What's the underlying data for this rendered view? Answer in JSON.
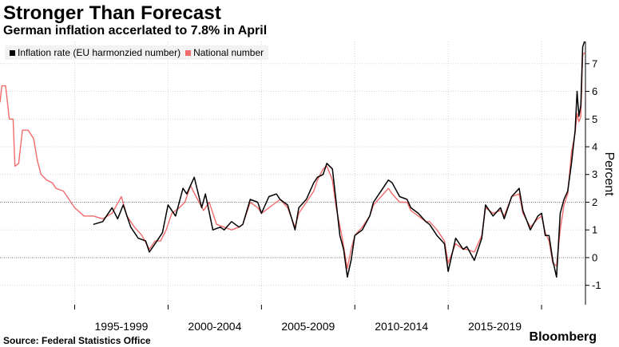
{
  "header": {
    "title": "Stronger Than Forecast",
    "subtitle": "German inflation accerlated to 7.8% in April"
  },
  "footer": {
    "source": "Source: Federal Statistics Office",
    "brand": "Bloomberg"
  },
  "chart_data": {
    "type": "line",
    "ylabel": "Percent",
    "ylim": [
      -1.7,
      7.8
    ],
    "xlim": [
      1991.0,
      2022.35
    ],
    "yticks": [
      "-1",
      "0",
      "1",
      "2",
      "3",
      "4",
      "5",
      "6",
      "7"
    ],
    "ytick_values": [
      -1,
      0,
      1,
      2,
      3,
      4,
      5,
      6,
      7
    ],
    "xtick_labels": [
      "1995-1999",
      "2000-2004",
      "2005-2009",
      "2010-2014",
      "2015-2019"
    ],
    "xtick_centers": [
      1997.5,
      2002.5,
      2007.5,
      2012.5,
      2017.5
    ],
    "xtick_separators": [
      1995,
      2000,
      2005,
      2010,
      2015,
      2020
    ],
    "reference_lines": [
      0,
      2
    ],
    "grid": true,
    "legend": "top-left",
    "colors": {
      "hicp": "#000000",
      "national": "#f26b6b"
    },
    "series": [
      {
        "name": "Inflation rate (EU harmonzied number)",
        "key": "hicp",
        "points": [
          [
            1996.0,
            1.2
          ],
          [
            1996.5,
            1.3
          ],
          [
            1997.0,
            1.8
          ],
          [
            1997.3,
            1.4
          ],
          [
            1997.6,
            1.9
          ],
          [
            1998.0,
            1.1
          ],
          [
            1998.4,
            0.7
          ],
          [
            1998.8,
            0.6
          ],
          [
            1999.0,
            0.2
          ],
          [
            1999.3,
            0.5
          ],
          [
            1999.7,
            0.9
          ],
          [
            2000.0,
            1.9
          ],
          [
            2000.4,
            1.5
          ],
          [
            2000.8,
            2.5
          ],
          [
            2001.0,
            2.3
          ],
          [
            2001.4,
            2.9
          ],
          [
            2001.8,
            1.8
          ],
          [
            2002.0,
            2.3
          ],
          [
            2002.4,
            1.0
          ],
          [
            2002.8,
            1.1
          ],
          [
            2003.0,
            1.0
          ],
          [
            2003.4,
            1.3
          ],
          [
            2003.8,
            1.1
          ],
          [
            2004.0,
            1.2
          ],
          [
            2004.4,
            2.1
          ],
          [
            2004.8,
            2.0
          ],
          [
            2005.0,
            1.6
          ],
          [
            2005.4,
            2.2
          ],
          [
            2005.8,
            2.3
          ],
          [
            2006.0,
            2.1
          ],
          [
            2006.4,
            1.9
          ],
          [
            2006.8,
            1.0
          ],
          [
            2007.0,
            1.8
          ],
          [
            2007.4,
            2.1
          ],
          [
            2007.8,
            2.7
          ],
          [
            2008.0,
            2.9
          ],
          [
            2008.3,
            3.0
          ],
          [
            2008.5,
            3.4
          ],
          [
            2008.8,
            3.2
          ],
          [
            2009.0,
            2.0
          ],
          [
            2009.2,
            0.8
          ],
          [
            2009.4,
            0.3
          ],
          [
            2009.6,
            -0.7
          ],
          [
            2009.8,
            -0.1
          ],
          [
            2010.0,
            0.8
          ],
          [
            2010.4,
            1.0
          ],
          [
            2010.8,
            1.5
          ],
          [
            2011.0,
            2.0
          ],
          [
            2011.4,
            2.4
          ],
          [
            2011.8,
            2.8
          ],
          [
            2012.0,
            2.7
          ],
          [
            2012.4,
            2.2
          ],
          [
            2012.8,
            2.1
          ],
          [
            2013.0,
            1.8
          ],
          [
            2013.4,
            1.6
          ],
          [
            2013.8,
            1.3
          ],
          [
            2014.0,
            1.2
          ],
          [
            2014.4,
            0.8
          ],
          [
            2014.8,
            0.5
          ],
          [
            2015.0,
            -0.5
          ],
          [
            2015.4,
            0.7
          ],
          [
            2015.8,
            0.3
          ],
          [
            2016.0,
            0.4
          ],
          [
            2016.4,
            -0.1
          ],
          [
            2016.8,
            0.7
          ],
          [
            2017.0,
            1.9
          ],
          [
            2017.4,
            1.5
          ],
          [
            2017.8,
            1.8
          ],
          [
            2018.0,
            1.4
          ],
          [
            2018.4,
            2.2
          ],
          [
            2018.8,
            2.5
          ],
          [
            2019.0,
            1.7
          ],
          [
            2019.4,
            1.0
          ],
          [
            2019.8,
            1.5
          ],
          [
            2020.0,
            1.6
          ],
          [
            2020.2,
            0.8
          ],
          [
            2020.4,
            0.8
          ],
          [
            2020.6,
            -0.1
          ],
          [
            2020.8,
            -0.7
          ],
          [
            2021.0,
            1.6
          ],
          [
            2021.2,
            2.1
          ],
          [
            2021.4,
            2.4
          ],
          [
            2021.6,
            3.4
          ],
          [
            2021.8,
            4.6
          ],
          [
            2021.9,
            6.0
          ],
          [
            2022.0,
            5.1
          ],
          [
            2022.1,
            5.5
          ],
          [
            2022.2,
            7.6
          ],
          [
            2022.3,
            7.8
          ]
        ]
      },
      {
        "name": "National number",
        "key": "national",
        "points": [
          [
            1991.0,
            5.6
          ],
          [
            1991.1,
            6.2
          ],
          [
            1991.3,
            6.2
          ],
          [
            1991.5,
            5.0
          ],
          [
            1991.7,
            5.0
          ],
          [
            1991.8,
            3.3
          ],
          [
            1992.0,
            3.4
          ],
          [
            1992.2,
            4.6
          ],
          [
            1992.5,
            4.6
          ],
          [
            1992.8,
            4.3
          ],
          [
            1993.0,
            3.5
          ],
          [
            1993.2,
            3.0
          ],
          [
            1993.5,
            2.8
          ],
          [
            1993.8,
            2.7
          ],
          [
            1994.0,
            2.5
          ],
          [
            1994.4,
            2.4
          ],
          [
            1994.8,
            2.0
          ],
          [
            1995.0,
            1.8
          ],
          [
            1995.5,
            1.5
          ],
          [
            1996.0,
            1.5
          ],
          [
            1996.5,
            1.4
          ],
          [
            1997.0,
            1.6
          ],
          [
            1997.5,
            2.2
          ],
          [
            1997.8,
            1.5
          ],
          [
            1998.2,
            1.1
          ],
          [
            1998.6,
            0.8
          ],
          [
            1999.0,
            0.3
          ],
          [
            1999.3,
            0.6
          ],
          [
            1999.6,
            0.6
          ],
          [
            1999.9,
            1.0
          ],
          [
            2000.2,
            1.6
          ],
          [
            2000.6,
            1.8
          ],
          [
            2000.9,
            2.0
          ],
          [
            2001.2,
            2.6
          ],
          [
            2001.5,
            2.2
          ],
          [
            2001.9,
            1.7
          ],
          [
            2002.2,
            2.0
          ],
          [
            2002.6,
            1.2
          ],
          [
            2003.0,
            1.1
          ],
          [
            2003.4,
            1.0
          ],
          [
            2003.8,
            1.1
          ],
          [
            2004.0,
            1.2
          ],
          [
            2004.4,
            2.0
          ],
          [
            2004.8,
            1.8
          ],
          [
            2005.0,
            1.6
          ],
          [
            2005.4,
            1.8
          ],
          [
            2005.8,
            2.0
          ],
          [
            2006.0,
            2.1
          ],
          [
            2006.4,
            1.8
          ],
          [
            2006.8,
            1.1
          ],
          [
            2007.0,
            1.6
          ],
          [
            2007.4,
            2.0
          ],
          [
            2007.8,
            2.4
          ],
          [
            2008.0,
            2.8
          ],
          [
            2008.3,
            3.2
          ],
          [
            2008.5,
            3.3
          ],
          [
            2008.8,
            2.8
          ],
          [
            2009.0,
            1.8
          ],
          [
            2009.3,
            0.8
          ],
          [
            2009.6,
            -0.4
          ],
          [
            2009.8,
            0.3
          ],
          [
            2010.0,
            0.8
          ],
          [
            2010.4,
            1.1
          ],
          [
            2010.8,
            1.5
          ],
          [
            2011.0,
            1.9
          ],
          [
            2011.4,
            2.2
          ],
          [
            2011.8,
            2.5
          ],
          [
            2012.0,
            2.3
          ],
          [
            2012.4,
            2.0
          ],
          [
            2012.8,
            2.0
          ],
          [
            2013.0,
            1.7
          ],
          [
            2013.4,
            1.5
          ],
          [
            2013.8,
            1.3
          ],
          [
            2014.0,
            1.3
          ],
          [
            2014.4,
            1.0
          ],
          [
            2014.8,
            0.6
          ],
          [
            2015.0,
            -0.2
          ],
          [
            2015.4,
            0.5
          ],
          [
            2015.8,
            0.3
          ],
          [
            2016.0,
            0.3
          ],
          [
            2016.4,
            0.2
          ],
          [
            2016.8,
            0.8
          ],
          [
            2017.0,
            1.8
          ],
          [
            2017.4,
            1.6
          ],
          [
            2017.8,
            1.7
          ],
          [
            2018.0,
            1.5
          ],
          [
            2018.4,
            2.2
          ],
          [
            2018.8,
            2.3
          ],
          [
            2019.0,
            1.6
          ],
          [
            2019.4,
            1.1
          ],
          [
            2019.8,
            1.4
          ],
          [
            2020.0,
            1.5
          ],
          [
            2020.2,
            0.9
          ],
          [
            2020.4,
            0.6
          ],
          [
            2020.6,
            -0.2
          ],
          [
            2020.8,
            -0.3
          ],
          [
            2021.0,
            1.0
          ],
          [
            2021.2,
            1.9
          ],
          [
            2021.4,
            2.3
          ],
          [
            2021.6,
            3.8
          ],
          [
            2021.8,
            4.5
          ],
          [
            2021.9,
            5.2
          ],
          [
            2022.0,
            4.9
          ],
          [
            2022.1,
            5.1
          ],
          [
            2022.2,
            7.3
          ],
          [
            2022.3,
            7.4
          ]
        ]
      }
    ]
  }
}
